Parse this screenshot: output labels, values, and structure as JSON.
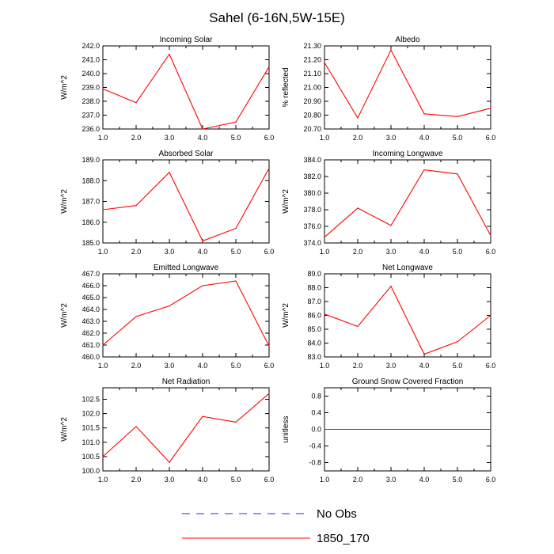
{
  "title": "Sahel (6-16N,5W-15E)",
  "colors": {
    "series": "#ff0000",
    "obs": "#2b2bd9",
    "axis": "#000000"
  },
  "legend": {
    "entries": [
      {
        "label": "No Obs",
        "style": "dashed",
        "color": "#2b2bd9"
      },
      {
        "label": "1850_170",
        "style": "solid",
        "color": "#ff0000"
      }
    ]
  },
  "chart_data": [
    {
      "type": "line",
      "title": "Incoming Solar",
      "ylabel": "W/m^2",
      "x": [
        1,
        2,
        3,
        4,
        5,
        6
      ],
      "values": [
        238.9,
        237.9,
        241.4,
        236.0,
        236.5,
        240.5
      ],
      "xlim": [
        1,
        6
      ],
      "ylim": [
        236,
        242
      ],
      "xticks": [
        "1.0",
        "2.0",
        "3.0",
        "4.0",
        "5.0",
        "6.0"
      ],
      "yticks": [
        236,
        237,
        238,
        239,
        240,
        241,
        242
      ],
      "ytick_labels": [
        "236.0",
        "237.0",
        "238.0",
        "239.0",
        "240.0",
        "241.0",
        "242.0"
      ]
    },
    {
      "type": "line",
      "title": "Albedo",
      "ylabel": "% reflected",
      "x": [
        1,
        2,
        3,
        4,
        5,
        6
      ],
      "values": [
        21.18,
        20.78,
        21.27,
        20.81,
        20.79,
        20.85
      ],
      "xlim": [
        1,
        6
      ],
      "ylim": [
        20.7,
        21.3
      ],
      "xticks": [
        "1.0",
        "2.0",
        "3.0",
        "4.0",
        "5.0",
        "6.0"
      ],
      "yticks": [
        20.7,
        20.8,
        20.9,
        21.0,
        21.1,
        21.2,
        21.3
      ],
      "ytick_labels": [
        "20.70",
        "20.80",
        "20.90",
        "21.00",
        "21.10",
        "21.20",
        "21.30"
      ]
    },
    {
      "type": "line",
      "title": "Absorbed Solar",
      "ylabel": "W/m^2",
      "x": [
        1,
        2,
        3,
        4,
        5,
        6
      ],
      "values": [
        186.6,
        186.8,
        188.4,
        185.1,
        185.7,
        188.6
      ],
      "xlim": [
        1,
        6
      ],
      "ylim": [
        185,
        189
      ],
      "xticks": [
        "1.0",
        "2.0",
        "3.0",
        "4.0",
        "5.0",
        "6.0"
      ],
      "yticks": [
        185,
        186,
        187,
        188,
        189
      ],
      "ytick_labels": [
        "185.0",
        "186.0",
        "187.0",
        "188.0",
        "189.0"
      ]
    },
    {
      "type": "line",
      "title": "Incoming Longwave",
      "ylabel": "W/m^2",
      "x": [
        1,
        2,
        3,
        4,
        5,
        6
      ],
      "values": [
        374.7,
        378.2,
        376.1,
        382.8,
        382.3,
        374.9
      ],
      "xlim": [
        1,
        6
      ],
      "ylim": [
        374,
        384
      ],
      "xticks": [
        "1.0",
        "2.0",
        "3.0",
        "4.0",
        "5.0",
        "6.0"
      ],
      "yticks": [
        374,
        376,
        378,
        380,
        382,
        384
      ],
      "ytick_labels": [
        "374.0",
        "376.0",
        "378.0",
        "380.0",
        "382.0",
        "384.0"
      ]
    },
    {
      "type": "line",
      "title": "Emitted Longwave",
      "ylabel": "W/m^2",
      "x": [
        1,
        2,
        3,
        4,
        5,
        6
      ],
      "values": [
        461.0,
        463.4,
        464.3,
        466.0,
        466.4,
        460.9
      ],
      "xlim": [
        1,
        6
      ],
      "ylim": [
        460,
        467
      ],
      "xticks": [
        "1.0",
        "2.0",
        "3.0",
        "4.0",
        "5.0",
        "6.0"
      ],
      "yticks": [
        460,
        461,
        462,
        463,
        464,
        465,
        466,
        467
      ],
      "ytick_labels": [
        "460.0",
        "461.0",
        "462.0",
        "463.0",
        "464.0",
        "465.0",
        "466.0",
        "467.0"
      ]
    },
    {
      "type": "line",
      "title": "Net Longwave",
      "ylabel": "W/m^2",
      "x": [
        1,
        2,
        3,
        4,
        5,
        6
      ],
      "values": [
        86.1,
        85.2,
        88.1,
        83.2,
        84.1,
        86.0
      ],
      "xlim": [
        1,
        6
      ],
      "ylim": [
        83,
        89
      ],
      "xticks": [
        "1.0",
        "2.0",
        "3.0",
        "4.0",
        "5.0",
        "6.0"
      ],
      "yticks": [
        83,
        84,
        85,
        86,
        87,
        88,
        89
      ],
      "ytick_labels": [
        "83.0",
        "84.0",
        "85.0",
        "86.0",
        "87.0",
        "88.0",
        "89.0"
      ]
    },
    {
      "type": "line",
      "title": "Net Radiation",
      "ylabel": "W/m^2",
      "x": [
        1,
        2,
        3,
        4,
        5,
        6
      ],
      "values": [
        100.5,
        101.55,
        100.3,
        101.9,
        101.7,
        102.7
      ],
      "xlim": [
        1,
        6
      ],
      "ylim": [
        100,
        102.9
      ],
      "xticks": [
        "1.0",
        "2.0",
        "3.0",
        "4.0",
        "5.0",
        "6.0"
      ],
      "yticks": [
        100,
        100.5,
        101,
        101.5,
        102,
        102.5
      ],
      "ytick_labels": [
        "100.0",
        "100.5",
        "101.0",
        "101.5",
        "102.0",
        "102.5"
      ]
    },
    {
      "type": "line",
      "title": "Ground Snow Covered Fraction",
      "ylabel": "unitless",
      "x": [
        1,
        2,
        3,
        4,
        5,
        6
      ],
      "values": [
        0,
        0,
        0,
        0,
        0,
        0
      ],
      "xlim": [
        1,
        6
      ],
      "ylim": [
        -1,
        1
      ],
      "xticks": [
        "1.0",
        "2.0",
        "3.0",
        "4.0",
        "5.0",
        "6.0"
      ],
      "yticks": [
        -0.8,
        -0.4,
        0,
        0.4,
        0.8
      ],
      "ytick_labels": [
        "-0.8",
        "-0.4",
        "0.0",
        "0.4",
        "0.8"
      ]
    }
  ]
}
